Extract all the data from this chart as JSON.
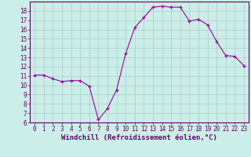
{
  "x": [
    0,
    1,
    2,
    3,
    4,
    5,
    6,
    7,
    8,
    9,
    10,
    11,
    12,
    13,
    14,
    15,
    16,
    17,
    18,
    19,
    20,
    21,
    22,
    23
  ],
  "y": [
    11.1,
    11.1,
    10.7,
    10.4,
    10.5,
    10.5,
    9.9,
    6.3,
    7.5,
    9.5,
    13.4,
    16.2,
    17.3,
    18.4,
    18.5,
    18.4,
    18.4,
    16.9,
    17.1,
    16.5,
    14.7,
    13.2,
    13.1,
    12.1
  ],
  "line_color": "#990099",
  "marker_color": "#990099",
  "background_color": "#cceee8",
  "grid_color": "#aacccc",
  "axis_color": "#660066",
  "xlabel": "Windchill (Refroidissement éolien,°C)",
  "ylim": [
    6,
    19
  ],
  "xlim": [
    -0.5,
    23.5
  ],
  "yticks": [
    6,
    7,
    8,
    9,
    10,
    11,
    12,
    13,
    14,
    15,
    16,
    17,
    18
  ],
  "xticks": [
    0,
    1,
    2,
    3,
    4,
    5,
    6,
    7,
    8,
    9,
    10,
    11,
    12,
    13,
    14,
    15,
    16,
    17,
    18,
    19,
    20,
    21,
    22,
    23
  ],
  "label_fontsize": 6.5,
  "tick_fontsize": 5.5
}
